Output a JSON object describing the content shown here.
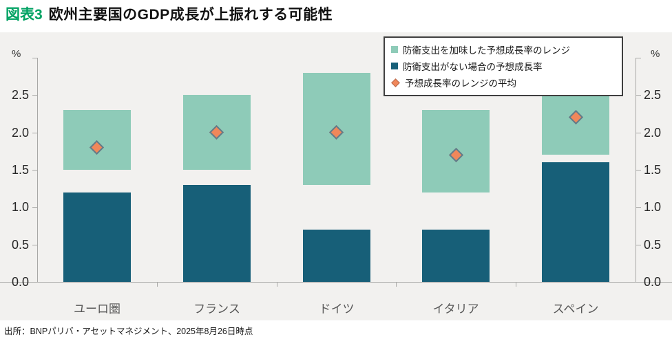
{
  "header": {
    "figure_label": "図表3",
    "title": "欧州主要国のGDP成長が上振れする可能性",
    "figure_label_color": "#00a263"
  },
  "legend": {
    "items": [
      {
        "marker": "square",
        "color": "#8ecbb8",
        "label": "防衛支出を加味した予想成長率のレンジ"
      },
      {
        "marker": "square",
        "color": "#175f78",
        "label": "防衛支出がない場合の予想成長率"
      },
      {
        "marker": "diamond",
        "color": "#f0875a",
        "label": "予想成長率のレンジの平均"
      }
    ]
  },
  "axes": {
    "unit_left": "%",
    "unit_right": "%",
    "y_tick_labels": [
      "0.0",
      "0.5",
      "1.0",
      "1.5",
      "2.0",
      "2.5"
    ],
    "y_max": 3.0
  },
  "chart_data": {
    "type": "bar",
    "categories": [
      "ユーロ圏",
      "フランス",
      "ドイツ",
      "イタリア",
      "スペイン"
    ],
    "series": [
      {
        "name": "防衛支出を加味した予想成長率のレンジ",
        "type": "floating-range-bar",
        "color": "#8ecbb8",
        "ranges": [
          [
            1.5,
            2.3
          ],
          [
            1.5,
            2.5
          ],
          [
            1.3,
            2.8
          ],
          [
            1.2,
            2.3
          ],
          [
            1.7,
            2.5
          ]
        ]
      },
      {
        "name": "防衛支出がない場合の予想成長率",
        "type": "bar",
        "color": "#175f78",
        "values": [
          1.2,
          1.3,
          0.7,
          0.7,
          1.6
        ]
      },
      {
        "name": "予想成長率のレンジの平均",
        "type": "scatter-diamond",
        "color": "#f0875a",
        "values": [
          1.8,
          2.0,
          2.0,
          1.7,
          2.2
        ]
      }
    ],
    "title": "欧州主要国のGDP成長が上振れする可能性",
    "xlabel": "",
    "ylabel": "%",
    "ylim": [
      0,
      3.0
    ],
    "grid": false,
    "legend_position": "top-right"
  },
  "footer": {
    "source": "出所：BNPパリバ・アセットマネジメント、2025年8月26日時点"
  }
}
